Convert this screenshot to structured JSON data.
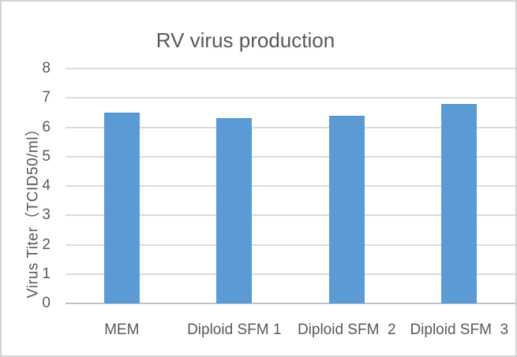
{
  "frame": {
    "background": "#ffffff",
    "border_color": "#d2d2d2"
  },
  "chart_data": {
    "type": "bar",
    "title": "RV virus production",
    "categories": [
      "MEM",
      "Diploid SFM 1",
      "Diploid SFM  2",
      "Diploid SFM  3"
    ],
    "values": [
      6.5,
      6.3,
      6.4,
      6.8
    ],
    "xlabel": "",
    "ylabel": "Virus Titer（TCID50/ml）",
    "ylim": [
      0,
      8
    ],
    "yticks": [
      0,
      1,
      2,
      3,
      4,
      5,
      6,
      7,
      8
    ],
    "grid": true,
    "legend": false,
    "colors": {
      "bar": "#5b9bd5",
      "bar_edge": "#4d88c7",
      "gridline": "#dcdcdc",
      "axis_line": "#c2c2c2",
      "text": "#595959"
    }
  }
}
